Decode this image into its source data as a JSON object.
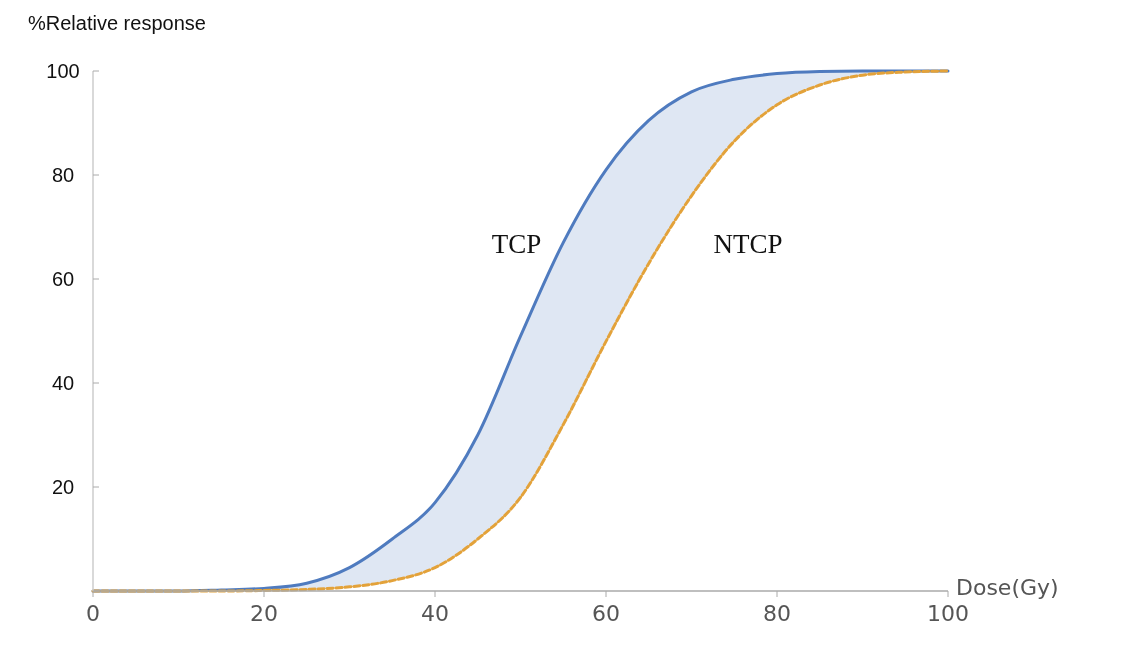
{
  "chart_data": {
    "type": "line",
    "xlabel": "Dose(Gy)",
    "ylabel": "%Relative response",
    "x": [
      0,
      10,
      15,
      20,
      25,
      30,
      35,
      40,
      45,
      50,
      55,
      60,
      65,
      70,
      75,
      80,
      85,
      90,
      95,
      100
    ],
    "series": [
      {
        "name": "TCP",
        "color": "#4f7bbf",
        "line_style": "solid",
        "values": [
          0,
          0,
          0.2,
          0.5,
          1.5,
          4.5,
          10,
          17,
          30,
          49,
          67,
          81,
          90.5,
          96,
          98.4,
          99.5,
          99.9,
          100,
          100,
          100
        ],
        "lower": [
          0,
          0,
          0,
          0.1,
          0.3,
          0.8,
          2,
          4.5,
          10,
          18,
          32,
          48,
          63,
          76,
          86.5,
          93.5,
          97.3,
          99.2,
          99.8,
          100
        ],
        "upper": [
          0,
          0,
          0.2,
          0.5,
          1.5,
          4.5,
          10,
          17,
          30,
          49,
          67,
          81,
          90.5,
          96,
          98.4,
          99.5,
          99.9,
          100,
          100,
          100
        ]
      },
      {
        "name": "NTCP",
        "color": "#e3a23a",
        "line_style": "dashed",
        "values": [
          0,
          0,
          0,
          0.1,
          0.3,
          0.8,
          2,
          4.5,
          10,
          18,
          32,
          48,
          63,
          76,
          86.5,
          93.5,
          97.3,
          99.2,
          99.8,
          100
        ]
      }
    ],
    "xlim": [
      0,
      100
    ],
    "xticks": [
      0,
      20,
      40,
      60,
      80,
      100
    ],
    "ylim": [
      0,
      100
    ],
    "yticks": [
      {
        "value": 0,
        "label": null
      },
      20,
      40,
      60,
      80,
      100
    ],
    "grid": false
  }
}
